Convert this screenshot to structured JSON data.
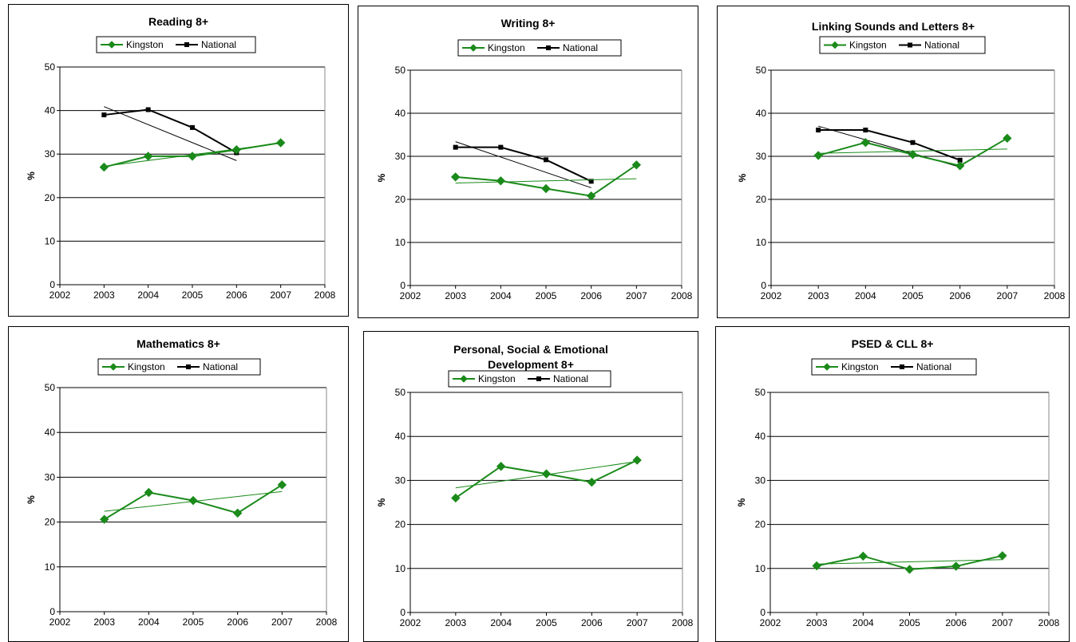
{
  "chart_data": [
    {
      "type": "line",
      "title": "Reading 8+",
      "ylabel": "%",
      "xlim": [
        2002,
        2008
      ],
      "ylim": [
        0,
        50
      ],
      "x_ticks": [
        "2002",
        "2003",
        "2004",
        "2005",
        "2006",
        "2007",
        "2008"
      ],
      "y_ticks": [
        "0",
        "10",
        "20",
        "30",
        "40",
        "50"
      ],
      "grid": true,
      "legend": "top",
      "series": [
        {
          "name": "Kingston",
          "color": "#1a8a1a",
          "marker": "diamond",
          "x": [
            2003,
            2004,
            2005,
            2006,
            2007
          ],
          "values": [
            27.0,
            29.5,
            29.5,
            31.0,
            32.6
          ],
          "trend": [
            27.2,
            32.5
          ]
        },
        {
          "name": "National",
          "color": "#000000",
          "marker": "square",
          "x": [
            2003,
            2004,
            2005,
            2006
          ],
          "values": [
            39.0,
            40.2,
            36.1,
            30.3
          ],
          "trend": [
            40.9,
            28.5
          ]
        }
      ]
    },
    {
      "type": "line",
      "title": "Writing 8+",
      "ylabel": "%",
      "xlim": [
        2002,
        2008
      ],
      "ylim": [
        0,
        50
      ],
      "x_ticks": [
        "2002",
        "2003",
        "2004",
        "2005",
        "2006",
        "2007",
        "2008"
      ],
      "y_ticks": [
        "0",
        "10",
        "20",
        "30",
        "40",
        "50"
      ],
      "grid": true,
      "legend": "top",
      "series": [
        {
          "name": "Kingston",
          "color": "#1a8a1a",
          "marker": "diamond",
          "x": [
            2003,
            2004,
            2005,
            2006,
            2007
          ],
          "values": [
            25.2,
            24.3,
            22.5,
            20.8,
            28.0
          ],
          "trend": [
            23.8,
            24.8
          ]
        },
        {
          "name": "National",
          "color": "#000000",
          "marker": "square",
          "x": [
            2003,
            2004,
            2005,
            2006
          ],
          "values": [
            32.1,
            32.1,
            29.2,
            24.2
          ],
          "trend": [
            33.4,
            22.7
          ]
        }
      ]
    },
    {
      "type": "line",
      "title": "Linking Sounds and Letters 8+",
      "ylabel": "%",
      "xlim": [
        2002,
        2008
      ],
      "ylim": [
        0,
        50
      ],
      "x_ticks": [
        "2002",
        "2003",
        "2004",
        "2005",
        "2006",
        "2007",
        "2008"
      ],
      "y_ticks": [
        "0",
        "10",
        "20",
        "30",
        "40",
        "50"
      ],
      "grid": true,
      "legend": "top",
      "series": [
        {
          "name": "Kingston",
          "color": "#1a8a1a",
          "marker": "diamond",
          "x": [
            2003,
            2004,
            2005,
            2006,
            2007
          ],
          "values": [
            30.2,
            33.2,
            30.4,
            27.8,
            34.2
          ],
          "trend": [
            30.7,
            31.7
          ]
        },
        {
          "name": "National",
          "color": "#000000",
          "marker": "square",
          "x": [
            2003,
            2004,
            2005,
            2006
          ],
          "values": [
            36.1,
            36.1,
            33.2,
            29.1
          ],
          "trend": [
            37.0,
            27.5
          ]
        }
      ]
    },
    {
      "type": "line",
      "title": "Mathematics 8+",
      "ylabel": "%",
      "xlim": [
        2002,
        2008
      ],
      "ylim": [
        0,
        50
      ],
      "x_ticks": [
        "2002",
        "2003",
        "2004",
        "2005",
        "2006",
        "2007",
        "2008"
      ],
      "y_ticks": [
        "0",
        "10",
        "20",
        "30",
        "40",
        "50"
      ],
      "grid": true,
      "legend": "top",
      "series": [
        {
          "name": "Kingston",
          "color": "#1a8a1a",
          "marker": "diamond",
          "x": [
            2003,
            2004,
            2005,
            2006,
            2007
          ],
          "values": [
            20.6,
            26.6,
            24.8,
            22.0,
            28.3
          ],
          "trend": [
            22.4,
            26.8
          ]
        },
        {
          "name": "National",
          "color": "#000000",
          "marker": "square",
          "x": [],
          "values": [],
          "trend": null
        }
      ]
    },
    {
      "type": "line",
      "title": "Personal, Social & Emotional Development 8+",
      "title_lines": [
        "Personal, Social & Emotional",
        "Development 8+"
      ],
      "ylabel": "%",
      "xlim": [
        2002,
        2008
      ],
      "ylim": [
        0,
        50
      ],
      "x_ticks": [
        "2002",
        "2003",
        "2004",
        "2005",
        "2006",
        "2007",
        "2008"
      ],
      "y_ticks": [
        "0",
        "10",
        "20",
        "30",
        "40",
        "50"
      ],
      "grid": true,
      "legend": "top",
      "series": [
        {
          "name": "Kingston",
          "color": "#1a8a1a",
          "marker": "diamond",
          "x": [
            2003,
            2004,
            2005,
            2006,
            2007
          ],
          "values": [
            26.0,
            33.2,
            31.5,
            29.6,
            34.6
          ],
          "trend": [
            28.3,
            34.3
          ]
        },
        {
          "name": "National",
          "color": "#000000",
          "marker": "square",
          "x": [],
          "values": [],
          "trend": null
        }
      ]
    },
    {
      "type": "line",
      "title": "PSED & CLL 8+",
      "ylabel": "%",
      "xlim": [
        2002,
        2008
      ],
      "ylim": [
        0,
        50
      ],
      "x_ticks": [
        "2002",
        "2003",
        "2004",
        "2005",
        "2006",
        "2007",
        "2008"
      ],
      "y_ticks": [
        "0",
        "10",
        "20",
        "30",
        "40",
        "50"
      ],
      "grid": true,
      "legend": "top",
      "series": [
        {
          "name": "Kingston",
          "color": "#1a8a1a",
          "marker": "diamond",
          "x": [
            2003,
            2004,
            2005,
            2006,
            2007
          ],
          "values": [
            10.6,
            12.8,
            9.8,
            10.5,
            12.9
          ],
          "trend": [
            11.0,
            12.0
          ]
        },
        {
          "name": "National",
          "color": "#000000",
          "marker": "square",
          "x": [],
          "values": [],
          "trend": null
        }
      ]
    }
  ]
}
